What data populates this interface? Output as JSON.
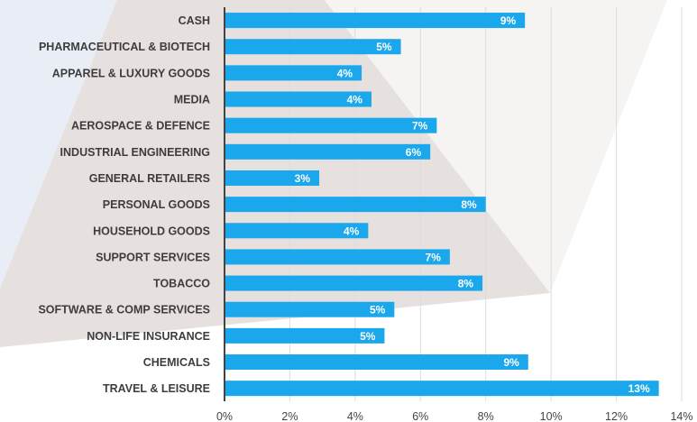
{
  "chart_data": {
    "type": "bar",
    "orientation": "horizontal",
    "categories": [
      "CASH",
      "PHARMACEUTICAL & BIOTECH",
      "APPAREL & LUXURY GOODS",
      "MEDIA",
      "AEROSPACE & DEFENCE",
      "INDUSTRIAL ENGINEERING",
      "GENERAL RETAILERS",
      "PERSONAL GOODS",
      "HOUSEHOLD GOODS",
      "SUPPORT SERVICES",
      "TOBACCO",
      "SOFTWARE & COMP SERVICES",
      "NON-LIFE INSURANCE",
      "CHEMICALS",
      "TRAVEL & LEISURE"
    ],
    "values": [
      9.2,
      5.4,
      4.2,
      4.5,
      6.5,
      6.3,
      2.9,
      8.0,
      4.4,
      6.9,
      7.9,
      5.2,
      4.9,
      9.3,
      13.3
    ],
    "data_labels": [
      "9%",
      "5%",
      "4%",
      "4%",
      "7%",
      "6%",
      "3%",
      "8%",
      "4%",
      "7%",
      "8%",
      "5%",
      "5%",
      "9%",
      "13%"
    ],
    "xlim": [
      0,
      14
    ],
    "x_ticks": [
      "0%",
      "2%",
      "4%",
      "6%",
      "8%",
      "10%",
      "12%",
      "14%"
    ],
    "grid": true,
    "bar_color": "#1aa7ec",
    "title": "",
    "xlabel": "",
    "ylabel": ""
  }
}
